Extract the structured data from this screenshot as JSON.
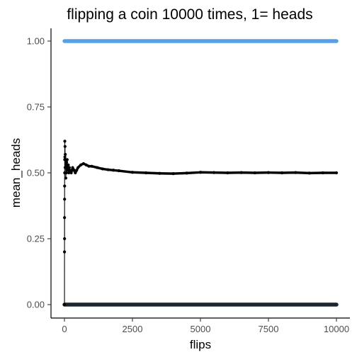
{
  "chart_data": {
    "type": "scatter",
    "title": "flipping a coin 10000 times, 1= heads",
    "xlabel": "flips",
    "ylabel": "mean_heads",
    "xlim": [
      0,
      10000
    ],
    "ylim": [
      0,
      1
    ],
    "x_ticks": [
      0,
      2500,
      5000,
      7500,
      10000
    ],
    "x_tick_labels": [
      "0",
      "2500",
      "5000",
      "7500",
      "10000"
    ],
    "y_ticks": [
      0,
      0.25,
      0.5,
      0.75,
      1.0
    ],
    "y_tick_labels": [
      "0.00",
      "0.25",
      "0.50",
      "0.75",
      "1.00"
    ],
    "grid": false,
    "legend": "none",
    "series": [
      {
        "color": "#56a0e6",
        "role": "flip outcome = 1",
        "x": [
          1,
          10000
        ],
        "values": [
          1,
          1
        ]
      },
      {
        "color": "#1a2530",
        "role": "flip outcome = 0",
        "x": [
          1,
          10000
        ],
        "values": [
          0,
          0
        ]
      },
      {
        "color": "#000000",
        "role": "running mean",
        "x": [
          1,
          2,
          3,
          4,
          5,
          6,
          8,
          10,
          13,
          16,
          20,
          25,
          30,
          40,
          50,
          60,
          70,
          80,
          90,
          100,
          120,
          140,
          160,
          180,
          200,
          250,
          300,
          350,
          400,
          450,
          500,
          600,
          700,
          800,
          900,
          1000,
          1200,
          1400,
          1600,
          1800,
          2000,
          2500,
          3000,
          3500,
          4000,
          4500,
          5000,
          5500,
          6000,
          6500,
          7000,
          7500,
          8000,
          8500,
          9000,
          9500,
          10000
        ],
        "values": [
          0.0,
          0.2,
          0.33,
          0.25,
          0.4,
          0.45,
          0.5,
          0.55,
          0.62,
          0.56,
          0.6,
          0.52,
          0.57,
          0.55,
          0.48,
          0.53,
          0.5,
          0.54,
          0.52,
          0.55,
          0.51,
          0.53,
          0.5,
          0.52,
          0.51,
          0.5,
          0.52,
          0.51,
          0.5,
          0.51,
          0.52,
          0.53,
          0.535,
          0.53,
          0.525,
          0.525,
          0.52,
          0.515,
          0.512,
          0.51,
          0.508,
          0.502,
          0.5,
          0.498,
          0.497,
          0.499,
          0.502,
          0.501,
          0.5,
          0.501,
          0.5,
          0.501,
          0.5,
          0.501,
          0.499,
          0.5,
          0.5
        ]
      }
    ]
  }
}
